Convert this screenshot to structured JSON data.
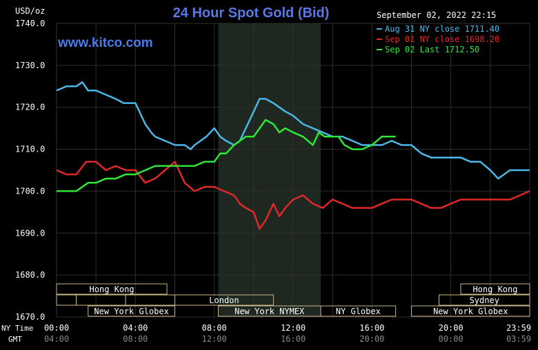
{
  "chart_data": {
    "type": "line",
    "title": "24 Hour Spot Gold (Bid)",
    "unit": "USD/oz",
    "watermark": "www.kitco.com",
    "datetime": "September 02, 2022 22:15",
    "ylim": [
      1670,
      1740
    ],
    "yticks": [
      "1740.0",
      "1730.0",
      "1720.0",
      "1710.0",
      "1700.0",
      "1690.0",
      "1680.0",
      "1670.0"
    ],
    "ny_time_label": "NY Time",
    "gmt_label": "GMT",
    "ny_time_ticks": [
      "00:00",
      "04:00",
      "08:00",
      "12:00",
      "16:00",
      "20:00",
      "23:59"
    ],
    "gmt_ticks": [
      "04:00",
      "08:00",
      "12:00",
      "16:00",
      "20:00",
      "00:00",
      "03:59"
    ],
    "shaded_session": {
      "start_hour": 8.2,
      "end_hour": 13.4
    },
    "sessions": [
      {
        "label": "Hong Kong",
        "row": 0,
        "start": 0.0,
        "end": 5.6
      },
      {
        "label": "Hong Kong",
        "row": 0,
        "start": 20.5,
        "end": 24.0
      },
      {
        "label": "",
        "row": 1,
        "start": 0.0,
        "end": 1.0
      },
      {
        "label": "",
        "row": 1,
        "start": 1.0,
        "end": 3.5
      },
      {
        "label": "",
        "row": 1,
        "start": 3.5,
        "end": 6.0
      },
      {
        "label": "London",
        "row": 1,
        "start": 6.0,
        "end": 11.0
      },
      {
        "label": "Sydney",
        "row": 1,
        "start": 19.4,
        "end": 24.0
      },
      {
        "label": "New York Globex",
        "row": 2,
        "start": 1.6,
        "end": 6.0
      },
      {
        "label": "New York NYMEX",
        "row": 2,
        "start": 8.2,
        "end": 13.4
      },
      {
        "label": "NY Globex",
        "row": 2,
        "start": 13.4,
        "end": 17.2
      },
      {
        "label": "New York Globex",
        "row": 2,
        "start": 18.0,
        "end": 24.0
      }
    ],
    "series": [
      {
        "name": "Aug 31 NY close 1711.40",
        "color": "#4cb8e8",
        "x": [
          0,
          0.5,
          1,
          1.3,
          1.6,
          2,
          2.5,
          3,
          3.4,
          3.7,
          4,
          4.3,
          4.5,
          4.8,
          5,
          5.5,
          6,
          6.5,
          6.8,
          7,
          7.3,
          7.6,
          8,
          8.3,
          8.6,
          9,
          9.3,
          9.6,
          10,
          10.3,
          10.6,
          11,
          11.3,
          11.6,
          12,
          12.5,
          13,
          13.5,
          14,
          14.5,
          15,
          15.5,
          16,
          16.5,
          17,
          17.5,
          18,
          18.5,
          19,
          19.5,
          20,
          20.5,
          21,
          21.5,
          22,
          22.4,
          22.7,
          23,
          23.5,
          23.99
        ],
        "y": [
          1724,
          1725,
          1725,
          1726,
          1724,
          1724,
          1723,
          1722,
          1721,
          1721,
          1721,
          1718,
          1716,
          1714,
          1713,
          1712,
          1711,
          1711,
          1710,
          1711,
          1712,
          1713,
          1715,
          1713,
          1712,
          1711,
          1712,
          1715,
          1719,
          1722,
          1722,
          1721,
          1720,
          1719,
          1718,
          1716,
          1715,
          1714,
          1713,
          1713,
          1712,
          1711,
          1711,
          1711,
          1712,
          1711,
          1711,
          1709,
          1708,
          1708,
          1708,
          1708,
          1707,
          1707,
          1705,
          1703,
          1704,
          1705,
          1705,
          1705
        ]
      },
      {
        "name": "Sep 01 NY close 1698.20",
        "color": "#e02828",
        "x": [
          0,
          0.5,
          1,
          1.5,
          2,
          2.5,
          3,
          3.5,
          4,
          4.5,
          5,
          5.5,
          6,
          6.5,
          7,
          7.5,
          8,
          8.5,
          9,
          9.3,
          9.6,
          10,
          10.3,
          10.6,
          11,
          11.3,
          11.6,
          12,
          12.5,
          13,
          13.5,
          14,
          14.5,
          15,
          15.5,
          16,
          16.5,
          17,
          17.5,
          18,
          18.5,
          19,
          19.5,
          20,
          20.5,
          21,
          21.5,
          22,
          22.5,
          23,
          23.5,
          23.99
        ],
        "y": [
          1705,
          1704,
          1704,
          1707,
          1707,
          1705,
          1706,
          1705,
          1705,
          1702,
          1703,
          1705,
          1707,
          1702,
          1700,
          1701,
          1701,
          1700,
          1699,
          1697,
          1696,
          1695,
          1691,
          1693,
          1697,
          1694,
          1696,
          1698,
          1699,
          1697,
          1696,
          1698,
          1697,
          1696,
          1696,
          1696,
          1697,
          1698,
          1698,
          1698,
          1697,
          1696,
          1696,
          1697,
          1698,
          1698,
          1698,
          1698,
          1698,
          1698,
          1699,
          1700
        ]
      },
      {
        "name": "Sep 02 Last 1712.50",
        "color": "#2ee838",
        "x": [
          0,
          0.5,
          1,
          1.3,
          1.6,
          2,
          2.5,
          3,
          3.5,
          4,
          4.5,
          5,
          5.5,
          6,
          6.5,
          7,
          7.5,
          8,
          8.3,
          8.6,
          9,
          9.3,
          9.6,
          10,
          10.3,
          10.6,
          11,
          11.3,
          11.6,
          12,
          12.5,
          13,
          13.3,
          13.6,
          14,
          14.3,
          14.6,
          15,
          15.5,
          16,
          16.5,
          16.8,
          17.2
        ],
        "y": [
          1700,
          1700,
          1700,
          1701,
          1702,
          1702,
          1703,
          1703,
          1704,
          1704,
          1705,
          1706,
          1706,
          1706,
          1706,
          1706,
          1707,
          1707,
          1709,
          1709,
          1711,
          1712,
          1713,
          1713,
          1715,
          1717,
          1716,
          1714,
          1715,
          1714,
          1713,
          1711,
          1714,
          1713,
          1713,
          1713,
          1711,
          1710,
          1710,
          1711,
          1713,
          1713,
          1713
        ]
      }
    ],
    "colors": {
      "background": "#000000",
      "grid": "#2f2f2f",
      "shade": "#1f2721",
      "title": "#5b79e6",
      "watermark": "#4a7be8",
      "session_border": "#c8b88a",
      "text": "#ffffff",
      "gmt_text": "#8a8a8a"
    }
  }
}
